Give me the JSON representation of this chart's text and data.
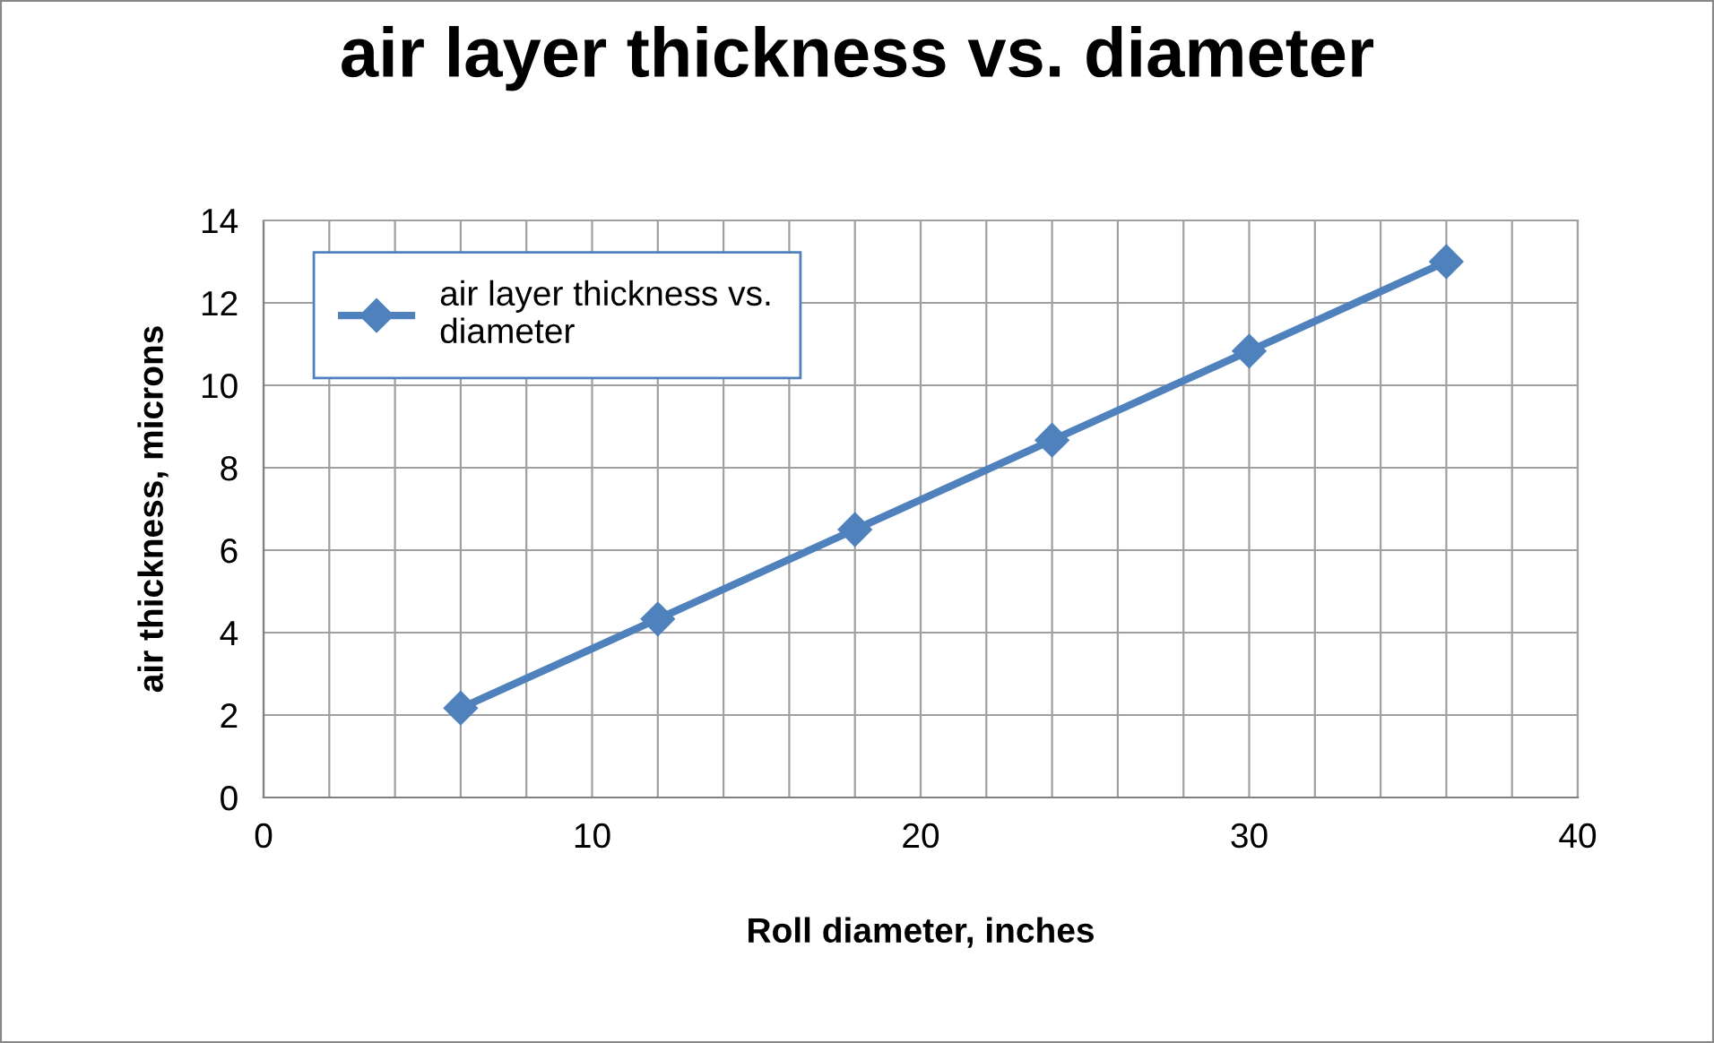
{
  "chart_data": {
    "type": "line",
    "title": "air layer thickness vs. diameter",
    "xlabel": "Roll diameter, inches",
    "ylabel": "air thickness, microns",
    "x": [
      6,
      12,
      18,
      24,
      30,
      36
    ],
    "series": [
      {
        "name": "air layer thickness vs.\ndiameter",
        "color": "#4f81bd",
        "values": [
          2.17,
          4.33,
          6.5,
          8.67,
          10.83,
          13.0
        ]
      }
    ],
    "xlim": [
      0,
      40
    ],
    "xticks": [
      0,
      {
        "value": 2,
        "label": null
      },
      {
        "value": 4,
        "label": null
      },
      {
        "value": 6,
        "label": null
      },
      {
        "value": 8,
        "label": null
      },
      10,
      {
        "value": 12,
        "label": null
      },
      {
        "value": 14,
        "label": null
      },
      {
        "value": 16,
        "label": null
      },
      {
        "value": 18,
        "label": null
      },
      20,
      {
        "value": 22,
        "label": null
      },
      {
        "value": 24,
        "label": null
      },
      {
        "value": 26,
        "label": null
      },
      {
        "value": 28,
        "label": null
      },
      30,
      {
        "value": 32,
        "label": null
      },
      {
        "value": 34,
        "label": null
      },
      {
        "value": 36,
        "label": null
      },
      {
        "value": 38,
        "label": null
      },
      40
    ],
    "ylim": [
      0,
      14
    ],
    "yticks": [
      0,
      2,
      4,
      6,
      8,
      10,
      12,
      14
    ],
    "grid": true,
    "legend": "top left",
    "marker": "diamond",
    "line_style": "solid"
  }
}
